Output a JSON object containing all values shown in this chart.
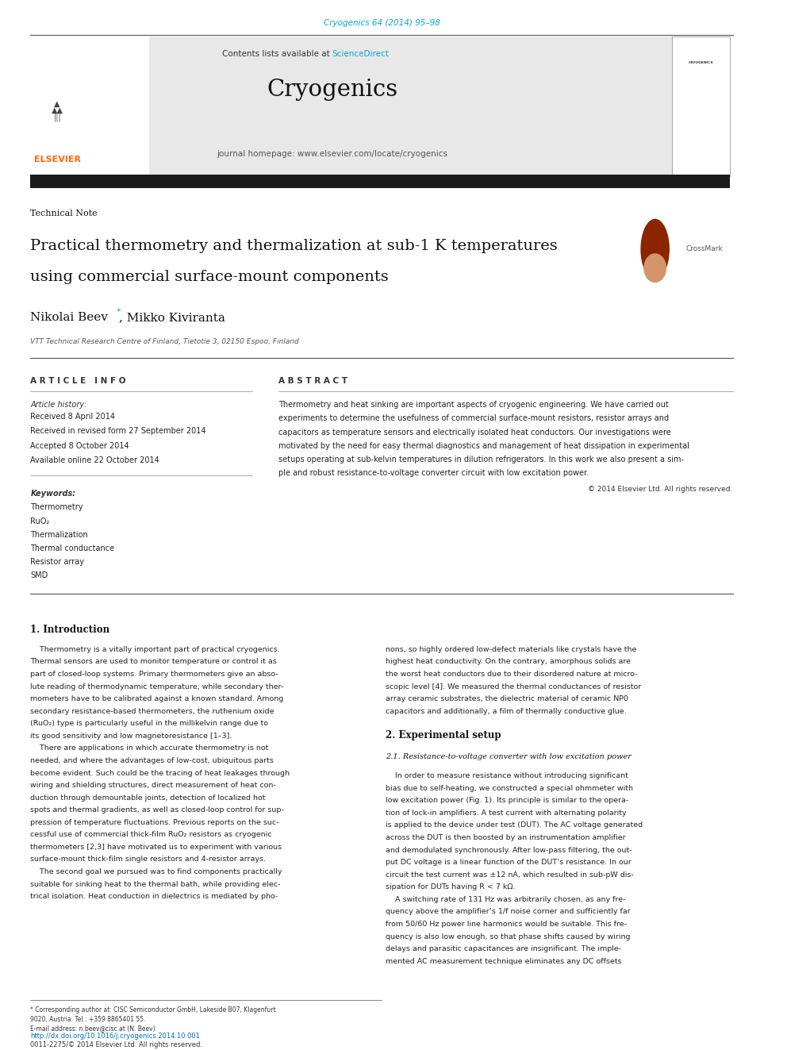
{
  "bg_color": "#ffffff",
  "page_width": 9.92,
  "page_height": 13.23,
  "journal_ref": "Cryogenics 64 (2014) 95–98",
  "journal_ref_color": "#00aacc",
  "contents_text": "Contents lists available at ",
  "sciencedirect_text": "ScienceDirect",
  "sciencedirect_color": "#00aacc",
  "journal_name": "Cryogenics",
  "journal_homepage": "journal homepage: www.elsevier.com/locate/cryogenics",
  "header_bg": "#e8e8e8",
  "thick_bar_color": "#1a1a1a",
  "section_label": "Technical Note",
  "paper_title_line1": "Practical thermometry and thermalization at sub-1 K temperatures",
  "paper_title_line2": "using commercial surface-mount components",
  "authors": "Nikolai Beev",
  "authors2": ", Mikko Kiviranta",
  "affiliation": "VTT Technical Research Centre of Finland, Tietotie 3, 02150 Espoo, Finland",
  "article_info_header": "A R T I C L E   I N F O",
  "abstract_header": "A B S T R A C T",
  "article_history_label": "Article history:",
  "history_lines": [
    "Received 8 April 2014",
    "Received in revised form 27 September 2014",
    "Accepted 8 October 2014",
    "Available online 22 October 2014"
  ],
  "keywords_label": "Keywords:",
  "keywords": [
    "Thermometry",
    "RuO₂",
    "Thermalization",
    "Thermal conductance",
    "Resistor array",
    "SMD"
  ],
  "abstract_text": "Thermometry and heat sinking are important aspects of cryogenic engineering. We have carried out\nexperiments to determine the usefulness of commercial surface-mount resistors, resistor arrays and\ncapacitors as temperature sensors and electrically isolated heat conductors. Our investigations were\nmotivated by the need for easy thermal diagnostics and management of heat dissipation in experimental\nsetups operating at sub-kelvin temperatures in dilution refrigerators. In this work we also present a sim-\nple and robust resistance-to-voltage converter circuit with low excitation power.",
  "copyright": "© 2014 Elsevier Ltd. All rights reserved.",
  "intro_section": "1. Introduction",
  "intro_col1": [
    "    Thermometry is a vitally important part of practical cryogenics.",
    "Thermal sensors are used to monitor temperature or control it as",
    "part of closed-loop systems. Primary thermometers give an abso-",
    "lute reading of thermodynamic temperature, while secondary ther-",
    "mometers have to be calibrated against a known standard. Among",
    "secondary resistance-based thermometers, the ruthenium oxide",
    "(RuO₂) type is particularly useful in the millikelvin range due to",
    "its good sensitivity and low magnetoresistance [1–3].",
    "    There are applications in which accurate thermometry is not",
    "needed, and where the advantages of low-cost, ubiquitous parts",
    "become evident. Such could be the tracing of heat leakages through",
    "wiring and shielding structures, direct measurement of heat con-",
    "duction through demountable joints, detection of localized hot",
    "spots and thermal gradients, as well as closed-loop control for sup-",
    "pression of temperature fluctuations. Previous reports on the suc-",
    "cessful use of commercial thick-film RuO₂ resistors as cryogenic",
    "thermometers [2,3] have motivated us to experiment with various",
    "surface-mount thick-film single resistors and 4-resistor arrays.",
    "    The second goal we pursued was to find components practically",
    "suitable for sinking heat to the thermal bath, while providing elec-",
    "trical isolation. Heat conduction in dielectrics is mediated by pho-"
  ],
  "intro_col2": [
    "nons, so highly ordered low-defect materials like crystals have the",
    "highest heat conductivity. On the contrary, amorphous solids are",
    "the worst heat conductors due to their disordered nature at micro-",
    "scopic level [4]. We measured the thermal conductances of resistor",
    "array ceramic substrates, the dielectric material of ceramic NP0",
    "capacitors and additionally, a film of thermally conductive glue."
  ],
  "exp_section": "2. Experimental setup",
  "exp_subsection": "2.1. Resistance-to-voltage converter with low excitation power",
  "exp_col2_text": [
    "    In order to measure resistance without introducing significant",
    "bias due to self-heating, we constructed a special ohmmeter with",
    "low excitation power (Fig. 1). Its principle is similar to the opera-",
    "tion of lock-in amplifiers. A test current with alternating polarity",
    "is applied to the device under test (DUT). The AC voltage generated",
    "across the DUT is then boosted by an instrumentation amplifier",
    "and demodulated synchronously. After low-pass filtering, the out-",
    "put DC voltage is a linear function of the DUT’s resistance. In our",
    "circuit the test current was ±12 nA, which resulted in sub-pW dis-",
    "sipation for DUTs having R < 7 kΩ.",
    "    A switching rate of 131 Hz was arbitrarily chosen, as any fre-",
    "quency above the amplifier’s 1/f noise corner and sufficiently far",
    "from 50/60 Hz power line harmonics would be suitable. This fre-",
    "quency is also low enough, so that phase shifts caused by wiring",
    "delays and parasitic capacitances are insignificant. The imple-",
    "mented AC measurement technique eliminates any DC offsets"
  ],
  "footer_footnote1": "* Corresponding author at: CISC Semiconductor GmbH, Lakeside B07, Klagenfurt",
  "footer_footnote2": "9020, Austria. Tel.: +359 8865401 55.",
  "footer_email": "E-mail address: n.beev@cisc.at (N. Beev).",
  "footer_doi": "http://dx.doi.org/10.1016/j.cryogenics.2014.10.001",
  "footer_issn": "0011-2275/© 2014 Elsevier Ltd. All rights reserved.",
  "elsevier_color": "#ff6600",
  "link_color": "#0070c0"
}
